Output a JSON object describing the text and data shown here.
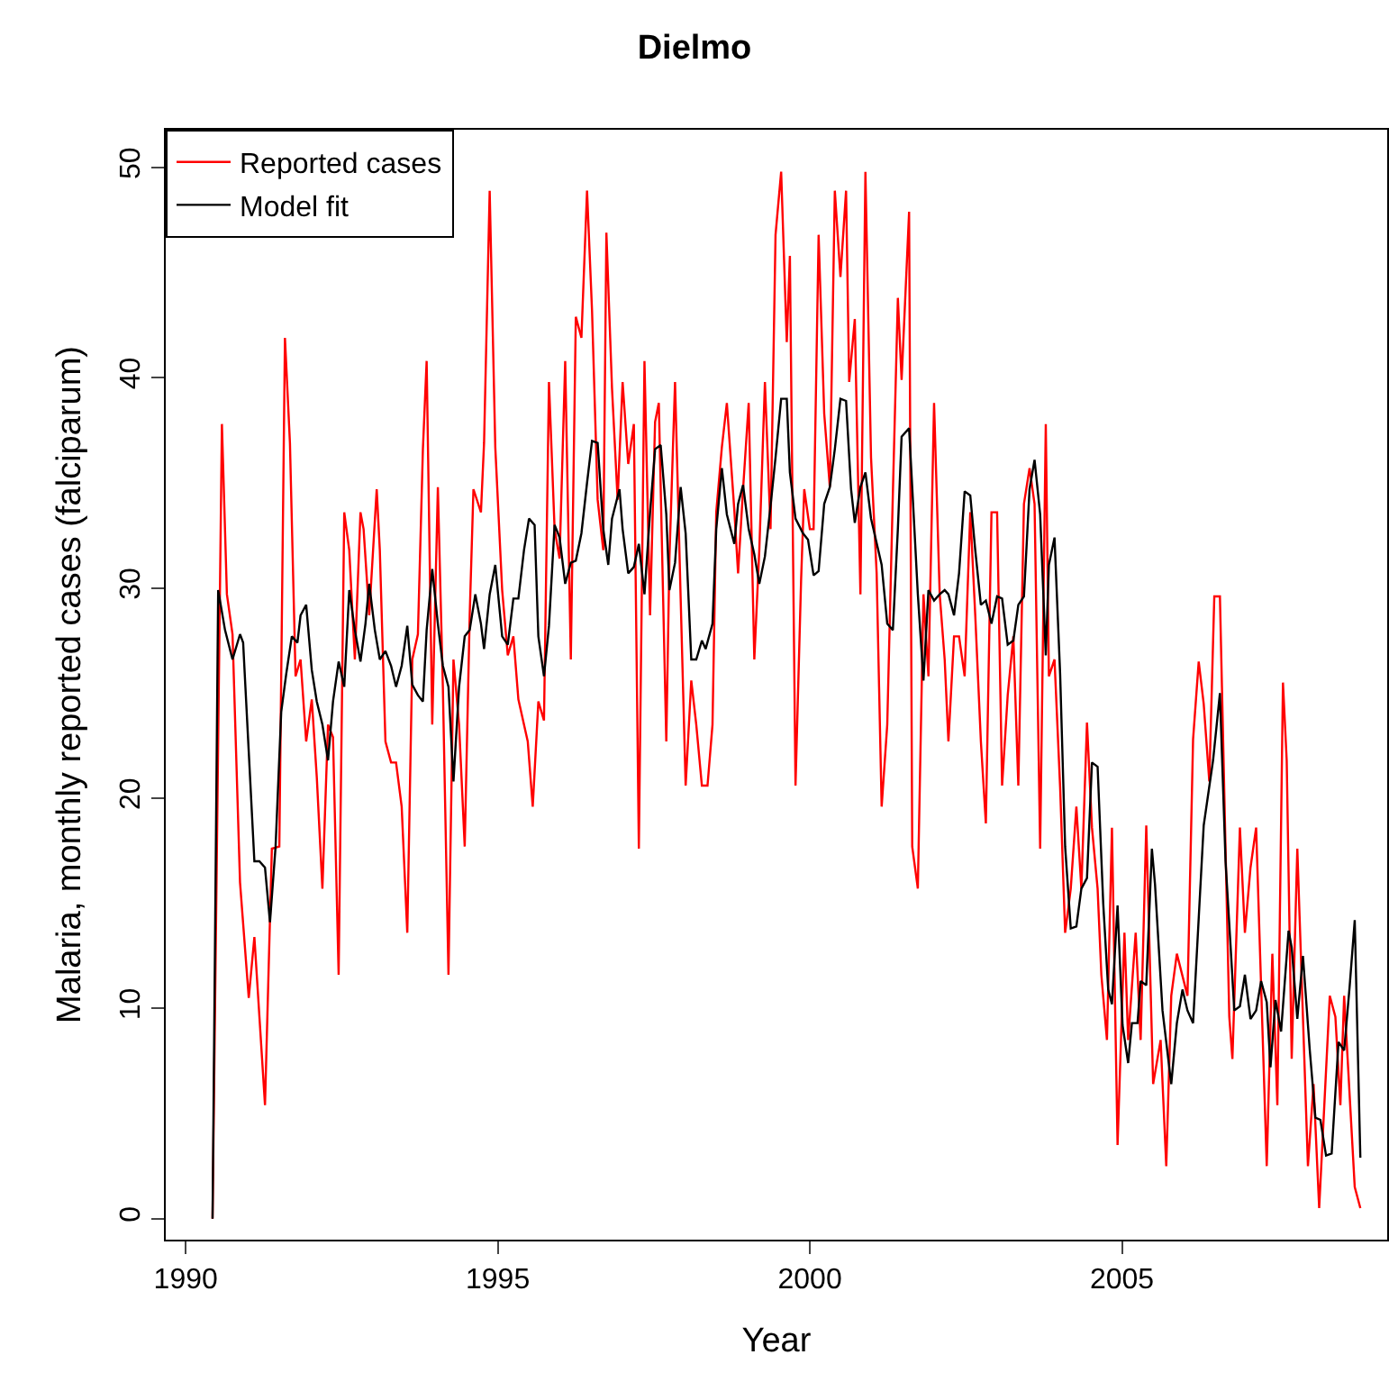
{
  "chart_data": {
    "type": "line",
    "title": "Dielmo",
    "xlabel": "Year",
    "ylabel": "Malaria, monthly reported cases (falciparum)",
    "xlim": [
      1989.68,
      2009.25
    ],
    "xticks": [
      1990,
      1995,
      2000,
      2005
    ],
    "ylim": [
      -1,
      51.8
    ],
    "yticks": [
      0,
      10,
      20,
      30,
      40,
      50
    ],
    "grid": false,
    "legend": "top left",
    "marker": "none",
    "line_style": "solid",
    "series": [
      {
        "name": "Reported cases",
        "color": "#ff0000",
        "x": [
          1990.43,
          1990.58,
          1990.66,
          1990.75,
          1990.87,
          1991.01,
          1991.1,
          1991.27,
          1991.38,
          1991.5,
          1991.59,
          1991.67,
          1991.76,
          1991.84,
          1991.93,
          1992.02,
          1992.1,
          1992.19,
          1992.28,
          1992.36,
          1992.45,
          1992.54,
          1992.62,
          1992.71,
          1992.8,
          1992.85,
          1992.94,
          1993.06,
          1993.11,
          1993.2,
          1993.29,
          1993.37,
          1993.46,
          1993.55,
          1993.63,
          1993.72,
          1993.8,
          1993.86,
          1993.95,
          1994.04,
          1994.12,
          1994.21,
          1994.29,
          1994.38,
          1994.47,
          1994.55,
          1994.61,
          1994.73,
          1994.78,
          1994.87,
          1994.96,
          1995.07,
          1995.16,
          1995.25,
          1995.33,
          1995.48,
          1995.56,
          1995.65,
          1995.74,
          1995.82,
          1995.91,
          1995.99,
          1996.08,
          1996.17,
          1996.25,
          1996.34,
          1996.43,
          1996.51,
          1996.6,
          1996.69,
          1996.74,
          1996.83,
          1996.92,
          1997,
          1997.09,
          1997.18,
          1997.26,
          1997.35,
          1997.44,
          1997.52,
          1997.58,
          1997.7,
          1997.75,
          1997.84,
          1997.93,
          1998.01,
          1998.1,
          1998.18,
          1998.27,
          1998.36,
          1998.44,
          1998.5,
          1998.59,
          1998.67,
          1998.79,
          1998.85,
          1998.93,
          1999.02,
          1999.11,
          1999.19,
          1999.28,
          1999.37,
          1999.45,
          1999.54,
          1999.63,
          1999.68,
          1999.77,
          1999.86,
          1999.91,
          2000,
          2000.06,
          2000.14,
          2000.23,
          2000.32,
          2000.4,
          2000.49,
          2000.58,
          2000.63,
          2000.72,
          2000.81,
          2000.89,
          2000.98,
          2001.07,
          2001.15,
          2001.24,
          2001.33,
          2001.41,
          2001.47,
          2001.59,
          2001.64,
          2001.73,
          2001.82,
          2001.9,
          2001.99,
          2002.08,
          2002.16,
          2002.22,
          2002.31,
          2002.39,
          2002.48,
          2002.57,
          2002.65,
          2002.74,
          2002.82,
          2002.91,
          2003,
          2003.08,
          2003.17,
          2003.26,
          2003.34,
          2003.43,
          2003.52,
          2003.6,
          2003.69,
          2003.78,
          2003.83,
          2003.92,
          2004.01,
          2004.09,
          2004.18,
          2004.27,
          2004.35,
          2004.44,
          2004.52,
          2004.61,
          2004.67,
          2004.76,
          2004.84,
          2004.93,
          2005.04,
          2005.1,
          2005.22,
          2005.3,
          2005.39,
          2005.5,
          2005.62,
          2005.71,
          2005.79,
          2005.88,
          2006.05,
          2006.14,
          2006.23,
          2006.31,
          2006.4,
          2006.48,
          2006.57,
          2006.72,
          2006.77,
          2006.89,
          2006.97,
          2007.06,
          2007.15,
          2007.32,
          2007.41,
          2007.49,
          2007.58,
          2007.64,
          2007.72,
          2007.81,
          2007.98,
          2008.07,
          2008.16,
          2008.33,
          2008.42,
          2008.5,
          2008.56,
          2008.73,
          2008.82
        ],
        "values": [
          0,
          37.8,
          29.7,
          27.8,
          16,
          10.5,
          13.4,
          5.4,
          17.6,
          17.7,
          41.9,
          36.9,
          25.8,
          26.6,
          22.7,
          24.7,
          21,
          15.7,
          23.5,
          22.9,
          11.6,
          33.6,
          31.8,
          26.6,
          33.6,
          32.8,
          28.7,
          34.7,
          31.8,
          22.7,
          21.7,
          21.7,
          19.6,
          13.6,
          26.6,
          27.8,
          36.6,
          40.8,
          23.5,
          34.8,
          25.3,
          11.6,
          26.6,
          23.5,
          17.7,
          28.7,
          34.7,
          33.6,
          36.9,
          48.9,
          36.7,
          29.9,
          26.8,
          27.7,
          24.7,
          22.7,
          19.6,
          24.6,
          23.7,
          39.8,
          32.8,
          31.4,
          40.8,
          26.6,
          42.9,
          41.9,
          48.9,
          43.2,
          34.2,
          31.8,
          46.9,
          39.5,
          34.2,
          39.8,
          35.9,
          37.8,
          17.6,
          40.8,
          28.7,
          37.9,
          38.8,
          22.7,
          31.4,
          39.8,
          29.5,
          20.6,
          25.6,
          23.5,
          20.6,
          20.6,
          23.5,
          33.6,
          36.7,
          38.8,
          33.7,
          30.7,
          34.7,
          38.8,
          26.6,
          31.8,
          39.8,
          32.8,
          46.8,
          49.8,
          41.7,
          45.8,
          20.6,
          30.4,
          34.7,
          32.8,
          32.8,
          46.8,
          38.3,
          34.8,
          48.9,
          44.8,
          48.9,
          39.8,
          42.8,
          29.7,
          49.8,
          36.2,
          30.7,
          19.6,
          23.5,
          34.5,
          43.8,
          39.9,
          47.9,
          17.7,
          15.7,
          29.7,
          25.8,
          38.8,
          29.7,
          26.6,
          22.7,
          27.7,
          27.7,
          25.8,
          33.6,
          28.7,
          22.7,
          18.8,
          33.6,
          33.6,
          20.6,
          24.9,
          27.7,
          20.6,
          34,
          35.7,
          34,
          17.6,
          37.8,
          25.8,
          26.6,
          20.5,
          13.6,
          15.7,
          19.6,
          15.7,
          23.6,
          18.6,
          15.7,
          11.6,
          8.5,
          18.6,
          3.5,
          13.6,
          8.5,
          13.6,
          8.5,
          18.7,
          6.4,
          8.5,
          2.5,
          10.6,
          12.6,
          10.6,
          22.8,
          26.5,
          24.5,
          20.8,
          29.6,
          29.6,
          9.6,
          7.6,
          18.6,
          13.6,
          16.7,
          18.6,
          2.5,
          12.6,
          5.4,
          25.5,
          21.8,
          7.6,
          17.6,
          2.5,
          6.4,
          0.5,
          10.6,
          9.6,
          5.4,
          10.6,
          1.5,
          0.5
        ]
      },
      {
        "name": "Model fit",
        "color": "#000000",
        "x": [
          1990.43,
          1990.52,
          1990.63,
          1990.75,
          1990.87,
          1990.92,
          1991.01,
          1991.1,
          1991.18,
          1991.27,
          1991.35,
          1991.44,
          1991.53,
          1991.61,
          1991.7,
          1991.79,
          1991.84,
          1991.93,
          1992.02,
          1992.1,
          1992.19,
          1992.28,
          1992.36,
          1992.45,
          1992.54,
          1992.62,
          1992.71,
          1992.8,
          1992.88,
          1992.94,
          1993.03,
          1993.11,
          1993.2,
          1993.29,
          1993.37,
          1993.46,
          1993.55,
          1993.63,
          1993.72,
          1993.8,
          1993.86,
          1993.95,
          1994.04,
          1994.12,
          1994.21,
          1994.29,
          1994.38,
          1994.47,
          1994.55,
          1994.64,
          1994.73,
          1994.78,
          1994.87,
          1994.96,
          1995.07,
          1995.16,
          1995.25,
          1995.33,
          1995.42,
          1995.5,
          1995.59,
          1995.65,
          1995.74,
          1995.82,
          1995.91,
          1995.99,
          1996.08,
          1996.17,
          1996.25,
          1996.34,
          1996.43,
          1996.51,
          1996.6,
          1996.69,
          1996.77,
          1996.83,
          1996.95,
          1997,
          1997.09,
          1997.18,
          1997.26,
          1997.35,
          1997.44,
          1997.52,
          1997.61,
          1997.7,
          1997.75,
          1997.84,
          1997.93,
          1998.01,
          1998.1,
          1998.18,
          1998.27,
          1998.33,
          1998.44,
          1998.5,
          1998.59,
          1998.67,
          1998.79,
          1998.85,
          1998.93,
          1999.02,
          1999.11,
          1999.19,
          1999.28,
          1999.37,
          1999.45,
          1999.54,
          1999.63,
          1999.68,
          1999.77,
          1999.89,
          1999.97,
          2000.06,
          2000.14,
          2000.23,
          2000.32,
          2000.4,
          2000.49,
          2000.58,
          2000.66,
          2000.72,
          2000.81,
          2000.89,
          2000.98,
          2001.15,
          2001.24,
          2001.33,
          2001.41,
          2001.47,
          2001.59,
          2001.64,
          2001.73,
          2001.82,
          2001.9,
          2001.99,
          2002.08,
          2002.16,
          2002.22,
          2002.31,
          2002.39,
          2002.48,
          2002.57,
          2002.65,
          2002.74,
          2002.82,
          2002.91,
          2003,
          2003.08,
          2003.17,
          2003.26,
          2003.34,
          2003.43,
          2003.52,
          2003.6,
          2003.69,
          2003.78,
          2003.83,
          2003.92,
          2004.01,
          2004.09,
          2004.18,
          2004.27,
          2004.35,
          2004.44,
          2004.52,
          2004.61,
          2004.7,
          2004.78,
          2004.84,
          2004.93,
          2005.01,
          2005.1,
          2005.16,
          2005.25,
          2005.3,
          2005.39,
          2005.48,
          2005.53,
          2005.65,
          2005.79,
          2005.88,
          2005.97,
          2006.05,
          2006.14,
          2006.31,
          2006.46,
          2006.57,
          2006.66,
          2006.74,
          2006.8,
          2006.89,
          2006.97,
          2007.06,
          2007.15,
          2007.23,
          2007.32,
          2007.38,
          2007.46,
          2007.55,
          2007.67,
          2007.72,
          2007.81,
          2007.9,
          2008.01,
          2008.1,
          2008.18,
          2008.27,
          2008.36,
          2008.47,
          2008.56,
          2008.65,
          2008.73,
          2008.82
        ],
        "values": [
          0,
          29.9,
          28,
          26.6,
          27.8,
          27.4,
          22.2,
          17,
          17,
          16.7,
          14.1,
          17.7,
          24.1,
          25.9,
          27.7,
          27.4,
          28.7,
          29.2,
          26.1,
          24.6,
          23.5,
          21.8,
          24.6,
          26.5,
          25.3,
          29.9,
          28,
          26.5,
          28.3,
          30.2,
          28,
          26.6,
          27,
          26.3,
          25.3,
          26.3,
          28.2,
          25.4,
          24.9,
          24.6,
          28,
          30.9,
          28.3,
          26.3,
          25.3,
          20.8,
          25.3,
          27.7,
          28,
          29.7,
          28.3,
          27.1,
          29.7,
          31.1,
          27.7,
          27.3,
          29.5,
          29.5,
          31.8,
          33.3,
          33,
          27.7,
          25.8,
          28.2,
          33,
          32.4,
          30.2,
          31.2,
          31.3,
          32.6,
          35,
          37,
          36.9,
          32.8,
          31.1,
          33.3,
          34.7,
          32.8,
          30.7,
          31,
          32.1,
          29.7,
          33.6,
          36.6,
          36.8,
          33.5,
          29.9,
          31.2,
          34.8,
          32.6,
          26.6,
          26.6,
          27.5,
          27.1,
          28.3,
          32.8,
          35.7,
          33.5,
          32.1,
          34,
          34.9,
          32.8,
          31.6,
          30.2,
          31.5,
          33.9,
          36.2,
          39,
          39,
          35.5,
          33.3,
          32.6,
          32.3,
          30.6,
          30.8,
          34,
          34.8,
          36.6,
          39,
          38.9,
          34.7,
          33.1,
          34.8,
          35.5,
          33.3,
          31.1,
          28.3,
          28,
          32.8,
          37.2,
          37.6,
          34.8,
          29.7,
          25.6,
          29.9,
          29.4,
          29.7,
          29.9,
          29.7,
          28.7,
          30.7,
          34.6,
          34.4,
          31.8,
          29.2,
          29.4,
          28.3,
          29.6,
          29.5,
          27.3,
          27.5,
          29.2,
          29.6,
          34.7,
          36.1,
          33.5,
          26.8,
          31.1,
          32.4,
          25.9,
          17.7,
          13.8,
          13.9,
          15.7,
          16.2,
          21.7,
          21.5,
          15,
          10.9,
          10.2,
          14.9,
          9.2,
          7.4,
          9.3,
          9.3,
          11.3,
          11.1,
          17.6,
          15.9,
          9.9,
          6.4,
          9.3,
          10.9,
          9.9,
          9.3,
          18.7,
          21.8,
          25,
          17,
          13,
          9.9,
          10.1,
          11.6,
          9.5,
          9.9,
          11.3,
          10.3,
          7.2,
          10.4,
          8.9,
          13.7,
          12.9,
          9.5,
          12.5,
          8,
          4.8,
          4.7,
          3,
          3.1,
          8.4,
          8,
          11.1,
          14.2,
          2.9
        ]
      }
    ]
  }
}
